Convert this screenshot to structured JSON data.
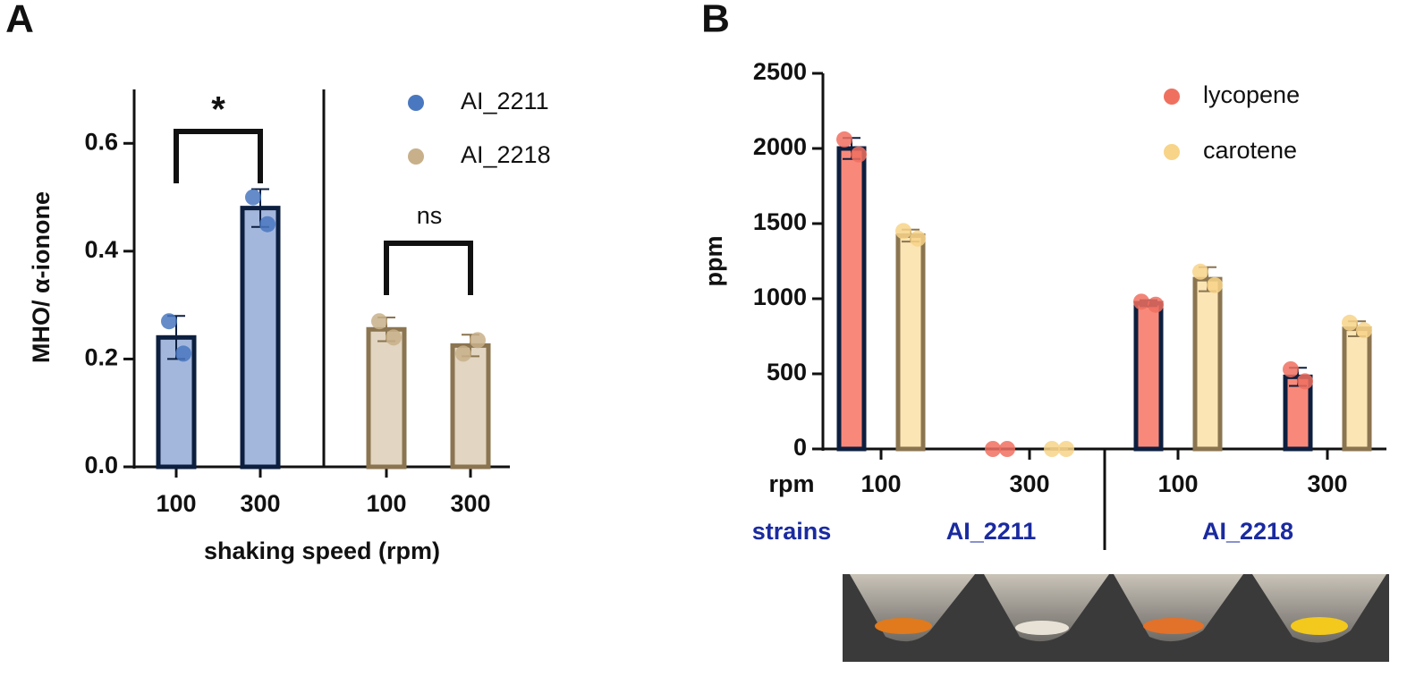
{
  "chart_data": [
    {
      "type": "bar",
      "panel_label": "A",
      "ylabel": "MHO/ α-ionone",
      "xlabel": "shaking speed (rpm)",
      "categories": [
        "100",
        "300",
        "100",
        "300"
      ],
      "ylim": [
        0,
        0.7
      ],
      "yticks": [
        {
          "value": 0,
          "label": "0.0"
        },
        0.2,
        0.4,
        0.6
      ],
      "series": [
        {
          "name": "AI_2211",
          "color": "#4a78c0",
          "fill": "#a3b7dd",
          "edge": "#0d1f3f",
          "values": [
            0.24,
            0.48,
            null,
            null
          ],
          "errors": [
            0.04,
            0.035,
            null,
            null
          ],
          "points": [
            [
              0.27,
              0.21
            ],
            [
              0.5,
              0.45
            ],
            null,
            null
          ]
        },
        {
          "name": "AI_2218",
          "color": "#c8b08a",
          "fill": "#e2d5c1",
          "edge": "#8b7550",
          "values": [
            null,
            null,
            0.255,
            0.225
          ],
          "errors": [
            null,
            null,
            0.022,
            0.02
          ],
          "points": [
            null,
            null,
            [
              0.27,
              0.24
            ],
            [
              0.21,
              0.235
            ]
          ]
        }
      ],
      "annotations": [
        "*",
        "ns"
      ]
    },
    {
      "type": "bar",
      "panel_label": "B",
      "ylabel": "ppm",
      "category_axis_label": "rpm",
      "group_axis_label": "strains",
      "categories": [
        "100",
        "300",
        "100",
        "300"
      ],
      "groups": [
        "AI_2211",
        "AI_2218"
      ],
      "ylim": [
        0,
        2500
      ],
      "yticks": [
        0,
        500,
        1000,
        1500,
        2000,
        2500
      ],
      "series": [
        {
          "name": "lycopene",
          "color": "#f07060",
          "fill": "#f8897a",
          "edge": "#0d1f3f",
          "values": [
            2000,
            0,
            970,
            480
          ],
          "errors": [
            70,
            0,
            20,
            60
          ],
          "points": [
            [
              2060,
              1960
            ],
            [
              0,
              0
            ],
            [
              980,
              960
            ],
            [
              530,
              450
            ]
          ]
        },
        {
          "name": "carotene",
          "color": "#f7d488",
          "fill": "#fbe5b5",
          "edge": "#8b7550",
          "values": [
            1420,
            0,
            1130,
            800
          ],
          "errors": [
            40,
            0,
            80,
            50
          ],
          "points": [
            [
              1450,
              1400
            ],
            [
              0,
              0
            ],
            [
              1180,
              1090
            ],
            [
              840,
              790
            ]
          ]
        }
      ]
    }
  ]
}
